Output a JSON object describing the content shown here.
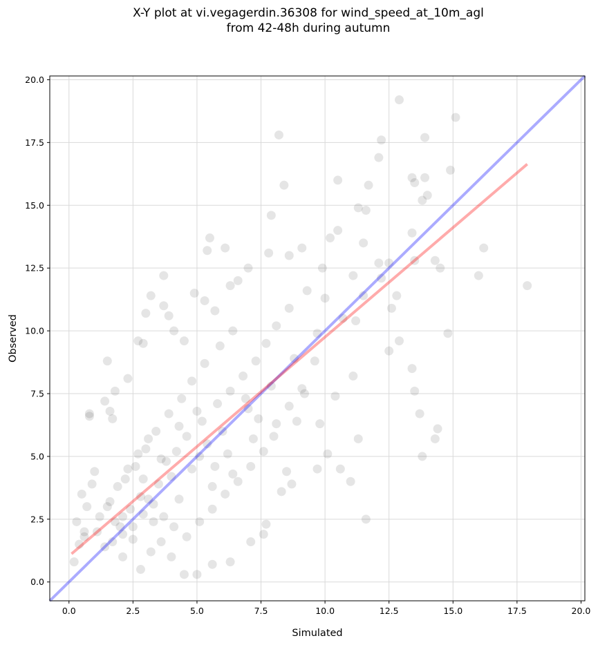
{
  "chart_data": {
    "type": "scatter",
    "title_line1": "X-Y plot at vi.vegagerdin.36308 for wind_speed_at_10m_agl",
    "title_line2": "from 42-48h during autumn",
    "xlabel": "Simulated",
    "ylabel": "Observed",
    "xlim": [
      -0.75,
      20.15
    ],
    "ylim": [
      -0.75,
      20.15
    ],
    "xticks": [
      0.0,
      2.5,
      5.0,
      7.5,
      10.0,
      12.5,
      15.0,
      17.5,
      20.0
    ],
    "yticks": [
      0.0,
      2.5,
      5.0,
      7.5,
      10.0,
      12.5,
      15.0,
      17.5,
      20.0
    ],
    "xtick_labels": [
      "0.0",
      "2.5",
      "5.0",
      "7.5",
      "10.0",
      "12.5",
      "15.0",
      "17.5",
      "20.0"
    ],
    "ytick_labels": [
      "0.0",
      "2.5",
      "5.0",
      "7.5",
      "10.0",
      "12.5",
      "15.0",
      "17.5",
      "20.0"
    ],
    "grid": true,
    "colors": {
      "points": "#000000",
      "identity_line": "#0000ff",
      "fit_line": "#ff0000"
    },
    "points": [
      [
        12.9,
        19.2
      ],
      [
        15.1,
        18.5
      ],
      [
        8.2,
        17.8
      ],
      [
        13.9,
        17.7
      ],
      [
        12.2,
        17.6
      ],
      [
        12.1,
        16.9
      ],
      [
        14.9,
        16.4
      ],
      [
        13.4,
        16.1
      ],
      [
        13.9,
        16.1
      ],
      [
        10.5,
        16.0
      ],
      [
        13.5,
        15.9
      ],
      [
        8.4,
        15.8
      ],
      [
        11.7,
        15.8
      ],
      [
        14.0,
        15.4
      ],
      [
        13.8,
        15.2
      ],
      [
        11.3,
        14.9
      ],
      [
        11.6,
        14.8
      ],
      [
        7.9,
        14.6
      ],
      [
        10.5,
        14.0
      ],
      [
        13.4,
        13.9
      ],
      [
        10.2,
        13.7
      ],
      [
        5.5,
        13.7
      ],
      [
        11.5,
        13.5
      ],
      [
        16.2,
        13.3
      ],
      [
        9.1,
        13.3
      ],
      [
        6.1,
        13.3
      ],
      [
        5.4,
        13.2
      ],
      [
        12.1,
        12.7
      ],
      [
        12.5,
        12.7
      ],
      [
        14.3,
        12.8
      ],
      [
        14.5,
        12.5
      ],
      [
        13.5,
        12.8
      ],
      [
        16.0,
        12.2
      ],
      [
        17.9,
        11.8
      ],
      [
        11.1,
        12.2
      ],
      [
        3.7,
        12.2
      ],
      [
        12.8,
        11.4
      ],
      [
        11.2,
        10.4
      ],
      [
        12.6,
        10.9
      ],
      [
        14.8,
        9.9
      ],
      [
        12.5,
        9.2
      ],
      [
        12.9,
        9.6
      ],
      [
        13.4,
        8.5
      ],
      [
        11.1,
        8.2
      ],
      [
        13.5,
        7.6
      ],
      [
        13.7,
        6.7
      ],
      [
        14.4,
        6.1
      ],
      [
        14.3,
        5.7
      ],
      [
        13.8,
        5.0
      ],
      [
        11.3,
        5.7
      ],
      [
        10.6,
        4.5
      ],
      [
        11.0,
        4.0
      ],
      [
        11.6,
        2.5
      ],
      [
        9.7,
        4.5
      ],
      [
        10.1,
        5.1
      ],
      [
        8.5,
        4.4
      ],
      [
        8.3,
        3.6
      ],
      [
        8.7,
        3.9
      ],
      [
        7.7,
        2.3
      ],
      [
        7.6,
        1.9
      ],
      [
        7.1,
        1.6
      ],
      [
        6.3,
        0.8
      ],
      [
        5.6,
        0.7
      ],
      [
        5.0,
        0.3
      ],
      [
        4.5,
        0.3
      ],
      [
        2.8,
        0.5
      ],
      [
        0.2,
        0.8
      ],
      [
        0.4,
        1.5
      ],
      [
        0.6,
        1.8
      ],
      [
        1.5,
        8.8
      ],
      [
        0.8,
        6.7
      ],
      [
        0.8,
        6.6
      ],
      [
        1.4,
        7.2
      ],
      [
        1.6,
        6.8
      ],
      [
        1.7,
        6.5
      ],
      [
        1.8,
        7.6
      ],
      [
        2.3,
        8.1
      ],
      [
        2.7,
        9.6
      ],
      [
        2.9,
        9.5
      ],
      [
        3.2,
        11.4
      ],
      [
        3.0,
        10.7
      ],
      [
        3.7,
        11.0
      ],
      [
        3.9,
        10.6
      ],
      [
        4.1,
        10.0
      ],
      [
        4.5,
        9.6
      ],
      [
        4.9,
        11.5
      ],
      [
        5.3,
        11.2
      ],
      [
        5.7,
        10.8
      ],
      [
        6.3,
        11.8
      ],
      [
        6.6,
        12.0
      ],
      [
        7.0,
        12.5
      ],
      [
        7.8,
        13.1
      ],
      [
        8.6,
        13.0
      ],
      [
        9.3,
        11.6
      ],
      [
        9.9,
        12.5
      ],
      [
        10.0,
        11.3
      ],
      [
        9.6,
        8.8
      ],
      [
        9.2,
        7.5
      ],
      [
        9.8,
        6.3
      ],
      [
        10.4,
        7.4
      ],
      [
        8.9,
        6.4
      ],
      [
        8.0,
        5.8
      ],
      [
        7.2,
        5.7
      ],
      [
        6.4,
        4.3
      ],
      [
        5.6,
        3.8
      ],
      [
        4.3,
        3.3
      ],
      [
        3.3,
        2.4
      ],
      [
        2.5,
        1.7
      ],
      [
        1.4,
        1.4
      ],
      [
        1.1,
        2.0
      ],
      [
        2.1,
        2.6
      ],
      [
        3.1,
        3.3
      ],
      [
        4.0,
        4.2
      ],
      [
        5.1,
        5.0
      ],
      [
        6.0,
        6.0
      ],
      [
        7.0,
        6.9
      ],
      [
        7.9,
        7.8
      ],
      [
        8.8,
        8.9
      ],
      [
        9.7,
        9.9
      ],
      [
        10.7,
        10.5
      ],
      [
        11.5,
        11.4
      ],
      [
        12.2,
        12.1
      ],
      [
        2.0,
        2.2
      ],
      [
        2.4,
        2.9
      ],
      [
        2.8,
        3.4
      ],
      [
        3.5,
        3.9
      ],
      [
        3.8,
        4.8
      ],
      [
        4.2,
        5.2
      ],
      [
        4.6,
        5.8
      ],
      [
        5.2,
        6.4
      ],
      [
        5.8,
        7.1
      ],
      [
        6.3,
        7.6
      ],
      [
        6.8,
        8.2
      ],
      [
        7.3,
        8.8
      ],
      [
        7.7,
        9.5
      ],
      [
        8.1,
        10.2
      ],
      [
        8.6,
        10.9
      ],
      [
        2.2,
        4.1
      ],
      [
        2.6,
        4.6
      ],
      [
        3.0,
        5.3
      ],
      [
        3.4,
        6.0
      ],
      [
        3.9,
        6.7
      ],
      [
        4.4,
        7.3
      ],
      [
        4.8,
        8.0
      ],
      [
        5.3,
        8.7
      ],
      [
        5.9,
        9.4
      ],
      [
        6.4,
        10.0
      ],
      [
        1.6,
        3.2
      ],
      [
        1.9,
        3.8
      ],
      [
        2.3,
        4.5
      ],
      [
        2.7,
        5.1
      ],
      [
        3.1,
        5.7
      ],
      [
        1.2,
        2.6
      ],
      [
        1.5,
        3.0
      ],
      [
        1.8,
        2.4
      ],
      [
        2.1,
        1.9
      ],
      [
        2.5,
        2.2
      ],
      [
        2.9,
        2.7
      ],
      [
        3.3,
        3.1
      ],
      [
        3.7,
        2.6
      ],
      [
        4.1,
        2.2
      ],
      [
        4.6,
        1.8
      ],
      [
        5.1,
        2.4
      ],
      [
        5.6,
        2.9
      ],
      [
        6.1,
        3.5
      ],
      [
        6.6,
        4.0
      ],
      [
        7.1,
        4.6
      ],
      [
        7.6,
        5.2
      ],
      [
        8.1,
        6.3
      ],
      [
        8.6,
        7.0
      ],
      [
        9.1,
        7.7
      ],
      [
        3.2,
        1.2
      ],
      [
        3.6,
        1.6
      ],
      [
        4.0,
        1.0
      ],
      [
        2.1,
        1.0
      ],
      [
        1.7,
        1.6
      ],
      [
        0.5,
        3.5
      ],
      [
        0.7,
        3.0
      ],
      [
        0.9,
        3.9
      ],
      [
        1.0,
        4.4
      ],
      [
        0.3,
        2.4
      ],
      [
        0.6,
        2.0
      ],
      [
        4.8,
        4.5
      ],
      [
        5.4,
        5.5
      ],
      [
        5.0,
        6.8
      ],
      [
        4.3,
        6.2
      ],
      [
        3.6,
        4.9
      ],
      [
        2.9,
        4.1
      ],
      [
        6.9,
        7.3
      ],
      [
        7.4,
        6.5
      ],
      [
        6.2,
        5.1
      ],
      [
        5.7,
        4.6
      ]
    ],
    "identity_line": [
      [
        -0.75,
        -0.75
      ],
      [
        20.15,
        20.15
      ]
    ],
    "fit_line": [
      [
        0.1,
        1.12
      ],
      [
        17.9,
        16.64
      ]
    ]
  }
}
